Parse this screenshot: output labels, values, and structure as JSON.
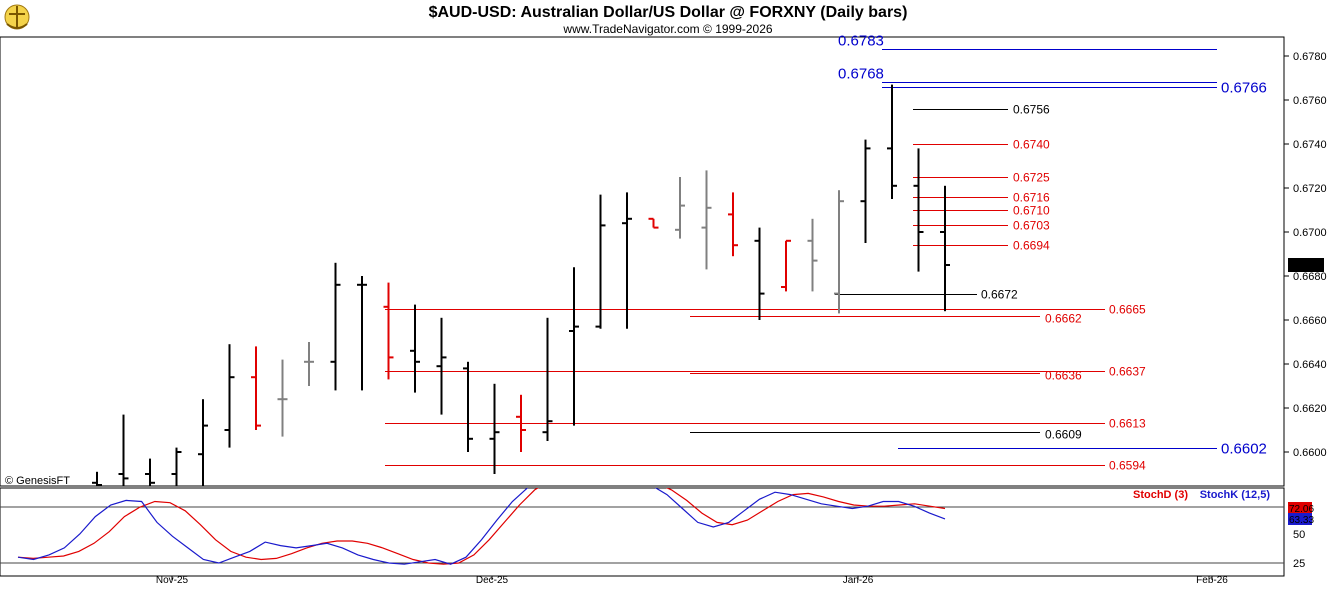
{
  "header": {
    "title": "$AUD-USD:  Australian Dollar/US Dollar @ FORXNY  (Daily bars)",
    "subtitle": "www.TradeNavigator.com © 1999-2026"
  },
  "copyright": "© GenesisFT",
  "colors": {
    "up_bar": "#000000",
    "down_bar": "#e00000",
    "neutral_bar": "#808080",
    "red_level": "#e00000",
    "blue_level": "#0000cc",
    "black_level": "#000000",
    "stoch_d": "#e00000",
    "stoch_k": "#1a1acc"
  },
  "chart_data": [
    {
      "type": "ohlc",
      "title": "$AUD-USD:  Australian Dollar/US Dollar @ FORXNY  (Daily bars)",
      "ylim": [
        0.6585,
        0.679
      ],
      "y_ticks": [
        "0.6780",
        "0.6760",
        "0.6740",
        "0.6720",
        "0.6700",
        "0.6680",
        "0.6660",
        "0.6640",
        "0.6620",
        "0.6600"
      ],
      "x_labels": [
        "Nov-25",
        "Dec-25",
        "Jan-26",
        "Feb-26"
      ],
      "last_price": "0.6685",
      "bars": [
        {
          "o": 0.6586,
          "h": 0.6591,
          "l": 0.658,
          "c": 0.6585,
          "color": "black"
        },
        {
          "o": 0.659,
          "h": 0.6617,
          "l": 0.6582,
          "c": 0.6588,
          "color": "black"
        },
        {
          "o": 0.659,
          "h": 0.6597,
          "l": 0.658,
          "c": 0.6586,
          "color": "black"
        },
        {
          "o": 0.659,
          "h": 0.6602,
          "l": 0.658,
          "c": 0.66,
          "color": "black"
        },
        {
          "o": 0.6599,
          "h": 0.6624,
          "l": 0.658,
          "c": 0.6612,
          "color": "black"
        },
        {
          "o": 0.661,
          "h": 0.6649,
          "l": 0.6602,
          "c": 0.6634,
          "color": "black"
        },
        {
          "o": 0.6634,
          "h": 0.6648,
          "l": 0.661,
          "c": 0.6612,
          "color": "red"
        },
        {
          "o": 0.6624,
          "h": 0.6642,
          "l": 0.6607,
          "c": 0.6624,
          "color": "gray"
        },
        {
          "o": 0.6641,
          "h": 0.665,
          "l": 0.663,
          "c": 0.6641,
          "color": "gray"
        },
        {
          "o": 0.6641,
          "h": 0.6686,
          "l": 0.6628,
          "c": 0.6676,
          "color": "black"
        },
        {
          "o": 0.6676,
          "h": 0.668,
          "l": 0.6628,
          "c": 0.6676,
          "color": "black"
        },
        {
          "o": 0.6666,
          "h": 0.6677,
          "l": 0.6633,
          "c": 0.6643,
          "color": "red"
        },
        {
          "o": 0.6646,
          "h": 0.6667,
          "l": 0.6627,
          "c": 0.6641,
          "color": "black"
        },
        {
          "o": 0.6639,
          "h": 0.6661,
          "l": 0.6617,
          "c": 0.6643,
          "color": "black"
        },
        {
          "o": 0.6638,
          "h": 0.6641,
          "l": 0.66,
          "c": 0.6606,
          "color": "black"
        },
        {
          "o": 0.6606,
          "h": 0.6631,
          "l": 0.659,
          "c": 0.6609,
          "color": "black"
        },
        {
          "o": 0.6616,
          "h": 0.6626,
          "l": 0.66,
          "c": 0.661,
          "color": "red"
        },
        {
          "o": 0.6609,
          "h": 0.6661,
          "l": 0.6605,
          "c": 0.6614,
          "color": "black"
        },
        {
          "o": 0.6655,
          "h": 0.6684,
          "l": 0.6612,
          "c": 0.6657,
          "color": "black"
        },
        {
          "o": 0.6657,
          "h": 0.6717,
          "l": 0.6656,
          "c": 0.6703,
          "color": "black"
        },
        {
          "o": 0.6704,
          "h": 0.6718,
          "l": 0.6656,
          "c": 0.6706,
          "color": "black"
        },
        {
          "o": 0.6706,
          "h": 0.6706,
          "l": 0.6702,
          "c": 0.6702,
          "color": "red"
        },
        {
          "o": 0.6701,
          "h": 0.6725,
          "l": 0.6697,
          "c": 0.6712,
          "color": "gray"
        },
        {
          "o": 0.6702,
          "h": 0.6728,
          "l": 0.6683,
          "c": 0.6711,
          "color": "gray"
        },
        {
          "o": 0.6708,
          "h": 0.6718,
          "l": 0.6689,
          "c": 0.6694,
          "color": "red"
        },
        {
          "o": 0.6696,
          "h": 0.6702,
          "l": 0.666,
          "c": 0.6672,
          "color": "black"
        },
        {
          "o": 0.6675,
          "h": 0.6696,
          "l": 0.6673,
          "c": 0.6696,
          "color": "red"
        },
        {
          "o": 0.6696,
          "h": 0.6706,
          "l": 0.6673,
          "c": 0.6687,
          "color": "gray"
        },
        {
          "o": 0.6672,
          "h": 0.6719,
          "l": 0.6663,
          "c": 0.6714,
          "color": "gray"
        },
        {
          "o": 0.6714,
          "h": 0.6742,
          "l": 0.6695,
          "c": 0.6738,
          "color": "black"
        },
        {
          "o": 0.6738,
          "h": 0.6767,
          "l": 0.6715,
          "c": 0.6721,
          "color": "black"
        },
        {
          "o": 0.6721,
          "h": 0.6738,
          "l": 0.6682,
          "c": 0.67,
          "color": "black"
        },
        {
          "o": 0.67,
          "h": 0.6721,
          "l": 0.6664,
          "c": 0.6685,
          "color": "black"
        }
      ],
      "levels": [
        {
          "value": "0.6783",
          "color": "blue",
          "size": "big"
        },
        {
          "value": "0.6768",
          "color": "blue",
          "size": "big"
        },
        {
          "value": "0.6766",
          "color": "blue",
          "size": "big"
        },
        {
          "value": "0.6756",
          "color": "black",
          "size": "small"
        },
        {
          "value": "0.6740",
          "color": "red",
          "size": "small"
        },
        {
          "value": "0.6725",
          "color": "red",
          "size": "small"
        },
        {
          "value": "0.6716",
          "color": "red",
          "size": "small"
        },
        {
          "value": "0.6710",
          "color": "red",
          "size": "small"
        },
        {
          "value": "0.6703",
          "color": "red",
          "size": "small"
        },
        {
          "value": "0.6694",
          "color": "red",
          "size": "small"
        },
        {
          "value": "0.6672",
          "color": "black",
          "size": "small"
        },
        {
          "value": "0.6665",
          "color": "red",
          "size": "small"
        },
        {
          "value": "0.6662",
          "color": "red",
          "size": "small"
        },
        {
          "value": "0.6637",
          "color": "red",
          "size": "small"
        },
        {
          "value": "0.6636",
          "color": "red",
          "size": "small"
        },
        {
          "value": "0.6613",
          "color": "red",
          "size": "small"
        },
        {
          "value": "0.6609",
          "color": "black",
          "size": "small"
        },
        {
          "value": "0.6602",
          "color": "blue",
          "size": "big"
        },
        {
          "value": "0.6594",
          "color": "red",
          "size": "small"
        }
      ]
    },
    {
      "type": "line",
      "ylim": [
        20,
        100
      ],
      "y_ticks": [
        "50",
        "25"
      ],
      "series": [
        {
          "name": "StochD (3)",
          "color": "red",
          "last_label": "72.06",
          "values": [
            30,
            29,
            30,
            31,
            35,
            42,
            52,
            65,
            73,
            78,
            77,
            70,
            58,
            45,
            35,
            30,
            28,
            29,
            33,
            38,
            42,
            44,
            44,
            42,
            38,
            33,
            28,
            25,
            24,
            25,
            32,
            45,
            60,
            75,
            88,
            96,
            100,
            100,
            100,
            100,
            100,
            98,
            94,
            88,
            79,
            68,
            60,
            58,
            62,
            70,
            78,
            84,
            85,
            82,
            78,
            75,
            74,
            74,
            75,
            76,
            74,
            72
          ]
        },
        {
          "name": "StochK (12,5)",
          "color": "blue",
          "last_label": "63.33",
          "values": [
            30,
            28,
            32,
            38,
            50,
            65,
            75,
            79,
            78,
            60,
            48,
            38,
            28,
            25,
            30,
            35,
            43,
            40,
            38,
            40,
            42,
            38,
            32,
            28,
            25,
            24,
            26,
            28,
            24,
            30,
            45,
            62,
            78,
            90,
            97,
            100,
            100,
            100,
            100,
            100,
            98,
            92,
            84,
            72,
            60,
            56,
            60,
            70,
            80,
            86,
            84,
            80,
            76,
            74,
            72,
            74,
            78,
            78,
            74,
            68,
            63
          ]
        }
      ]
    }
  ]
}
